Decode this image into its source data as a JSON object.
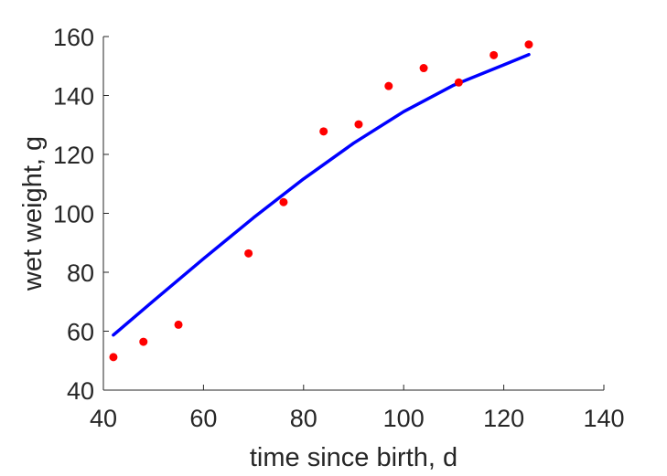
{
  "chart_data": {
    "type": "scatter",
    "title": "",
    "xlabel": "time since birth, d",
    "ylabel": "wet weight, g",
    "xlim": [
      40,
      140
    ],
    "ylim": [
      40,
      160
    ],
    "xticks": [
      40,
      60,
      80,
      100,
      120,
      140
    ],
    "yticks": [
      40,
      60,
      80,
      100,
      120,
      140,
      160
    ],
    "xtick_labels": [
      "40",
      "60",
      "80",
      "100",
      "120",
      "140"
    ],
    "ytick_labels": [
      "40",
      "60",
      "80",
      "100",
      "120",
      "140",
      "160"
    ],
    "grid": false,
    "series": [
      {
        "kind": "points",
        "color": "#ff0000",
        "x": [
          42,
          48,
          55,
          69,
          76,
          84,
          91,
          97,
          104,
          111,
          118,
          125
        ],
        "y": [
          51.2,
          56.4,
          62.2,
          86.4,
          103.8,
          127.8,
          130.2,
          143.2,
          149.3,
          144.4,
          153.7,
          157.3
        ]
      },
      {
        "kind": "line",
        "color": "#0000ff",
        "x": [
          42,
          50,
          60,
          70,
          80,
          90,
          100,
          110,
          120,
          125
        ],
        "y": [
          58.7,
          70.3,
          84.6,
          98.5,
          111.7,
          123.8,
          134.5,
          143.5,
          150.4,
          153.9
        ]
      }
    ]
  }
}
